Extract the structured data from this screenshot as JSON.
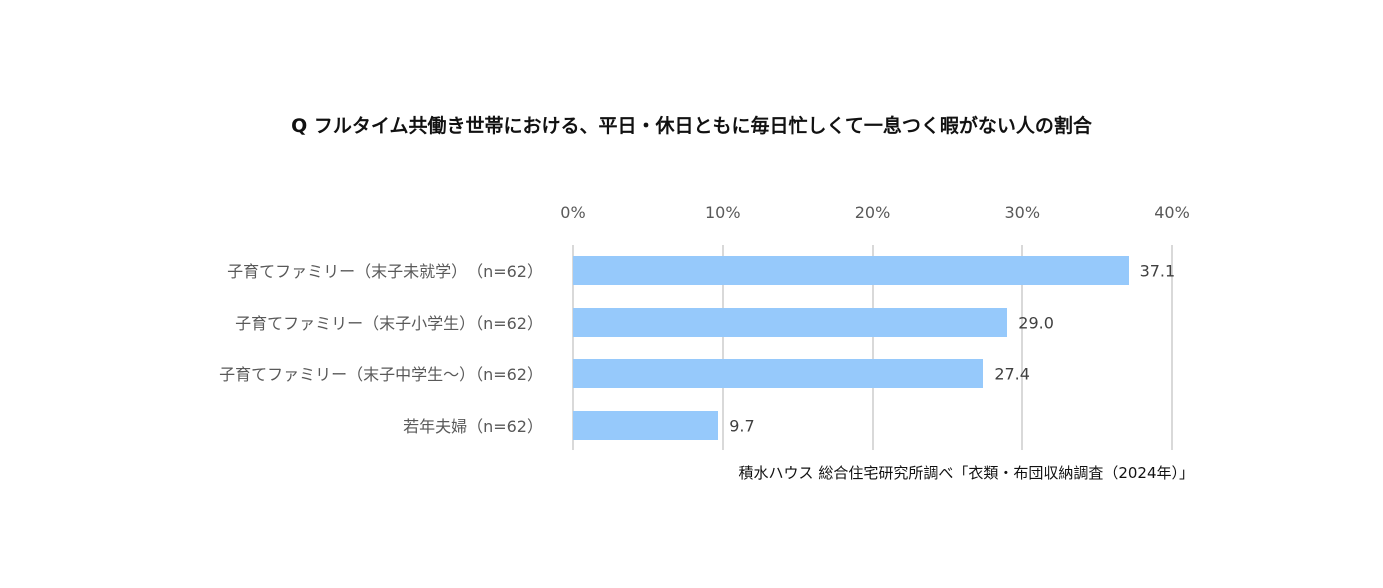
{
  "chart_data": {
    "type": "bar",
    "orientation": "horizontal",
    "title": "Q フルタイム共働き世帯における、平日・休日ともに毎日忙しくて一息つく暇がない人の割合",
    "categories": [
      "子育てファミリー（末子未就学）　（n=62）",
      "子育てファミリー（末子小学生）（n=62）",
      "子育てファミリー（末子中学生～）（n=62）",
      "若年夫婦（n=62）"
    ],
    "values": [
      37.1,
      29.0,
      27.4,
      9.7
    ],
    "value_labels": [
      "37.1",
      "29.0",
      "27.4",
      "9.7"
    ],
    "xlabel": "",
    "ylabel": "",
    "xlim": [
      0,
      40
    ],
    "x_ticks": [
      "0%",
      "10%",
      "20%",
      "30%",
      "40%"
    ],
    "grid": true,
    "legend": null,
    "bar_color": "#96c9fb",
    "source": "積水ハウス 総合住宅研究所調べ「衣類・布団収納調査（2024年）」"
  }
}
